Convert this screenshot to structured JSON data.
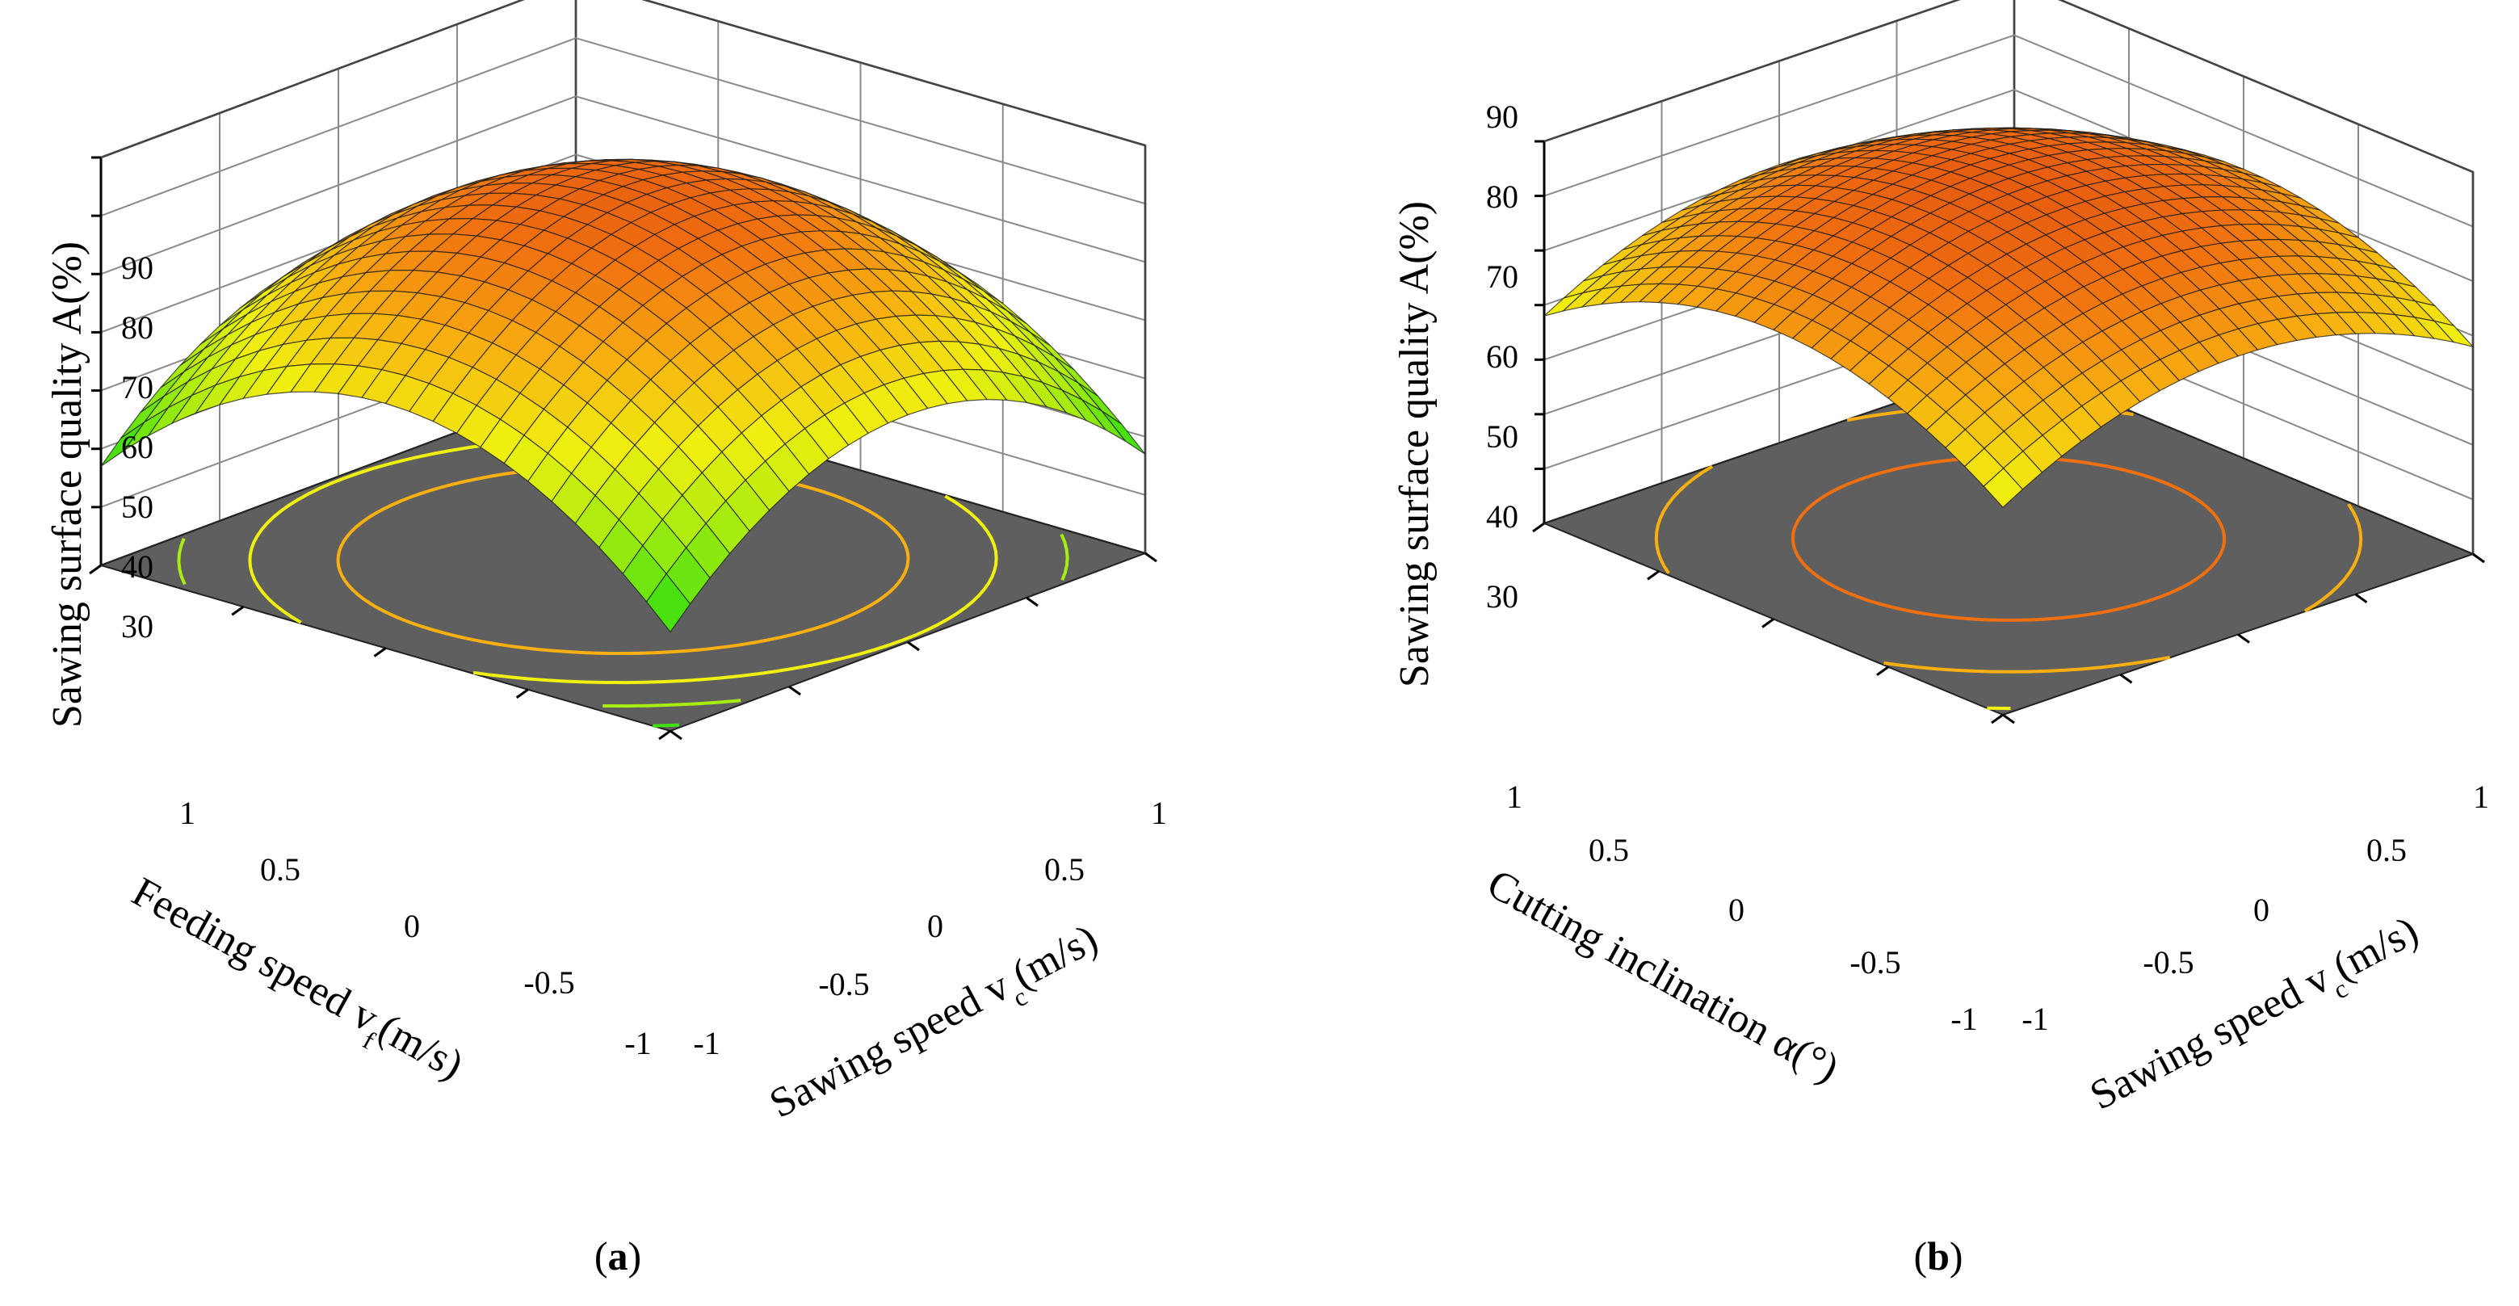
{
  "chart_data": [
    {
      "type": "surface",
      "panel_label": "a",
      "zlabel": "Sawing surface quality A(%)",
      "ylabel_left": "Feeding speed v",
      "ylabel_left_sub": "f",
      "ylabel_left_unit": "(m/s)",
      "xlabel_right": "Sawing speed v",
      "xlabel_right_sub": "c",
      "xlabel_right_unit": "(m/s)",
      "z_ticks": [
        "30",
        "40",
        "50",
        "60",
        "70",
        "80",
        "90"
      ],
      "left_ticks": [
        "1",
        "0.5",
        "0",
        "-0.5",
        "-1"
      ],
      "right_ticks": [
        "-1",
        "-0.5",
        "0",
        "0.5",
        "1"
      ],
      "zlim": [
        20,
        90
      ],
      "left_range": [
        -1,
        1
      ],
      "right_range": [
        -1,
        1
      ],
      "model": {
        "intercept": 84,
        "a": 25,
        "b": 22,
        "ab": 0,
        "a_lin": 0,
        "b_lin": 0
      },
      "contour_levels": [
        40,
        50,
        60,
        70
      ],
      "colormap": [
        "#00d8f0",
        "#12e0a0",
        "#42e010",
        "#a8ec10",
        "#f0f010",
        "#f8b010",
        "#f07010",
        "#e05010"
      ]
    },
    {
      "type": "surface",
      "panel_label": "b",
      "zlabel": "Sawing surface quality A(%)",
      "ylabel_left": "Cutting inclination α(°)",
      "xlabel_right": "Sawing speed v",
      "xlabel_right_sub": "c",
      "xlabel_right_unit": "(m/s)",
      "z_ticks": [
        "30",
        "40",
        "50",
        "60",
        "70",
        "80",
        "90"
      ],
      "left_ticks": [
        "1",
        "0.5",
        "0",
        "-0.5",
        "-1"
      ],
      "right_ticks": [
        "-1",
        "-0.5",
        "0",
        "0.5",
        "1"
      ],
      "zlim": [
        20,
        90
      ],
      "left_range": [
        -1,
        1
      ],
      "right_range": [
        -1,
        1
      ],
      "model": {
        "intercept": 86,
        "a": 15,
        "b": 13,
        "ab": 0,
        "a_lin": 0,
        "b_lin": 0
      },
      "contour_levels": [
        60,
        70,
        80
      ],
      "colormap": [
        "#00d8f0",
        "#12e0a0",
        "#42e010",
        "#a8ec10",
        "#f0f010",
        "#f8b010",
        "#f07010",
        "#e05010"
      ]
    }
  ]
}
